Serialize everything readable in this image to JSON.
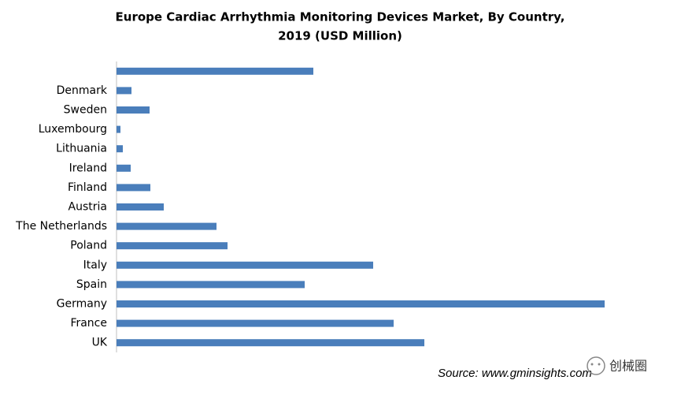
{
  "chart_data": {
    "type": "bar",
    "orientation": "horizontal",
    "title": [
      "Europe Cardiac Arrhythmia Monitoring  Devices Market, By Country,",
      "2019 (USD Million)"
    ],
    "categories": [
      null,
      "Denmark",
      "Sweden",
      "Luxembourg",
      "Lithuania",
      "Ireland",
      "Finland",
      "Austria",
      "The Netherlands",
      "Poland",
      "Italy",
      "Spain",
      "Germany",
      "France",
      "UK"
    ],
    "values": [
      250,
      19,
      42,
      5,
      8,
      18,
      43,
      60,
      127,
      141,
      326,
      239,
      620,
      352,
      391
    ],
    "color": "#4a7ebb",
    "xlim": [
      0,
      620
    ],
    "source": "Source: www.gminsights.com",
    "watermark": "创械圈"
  }
}
